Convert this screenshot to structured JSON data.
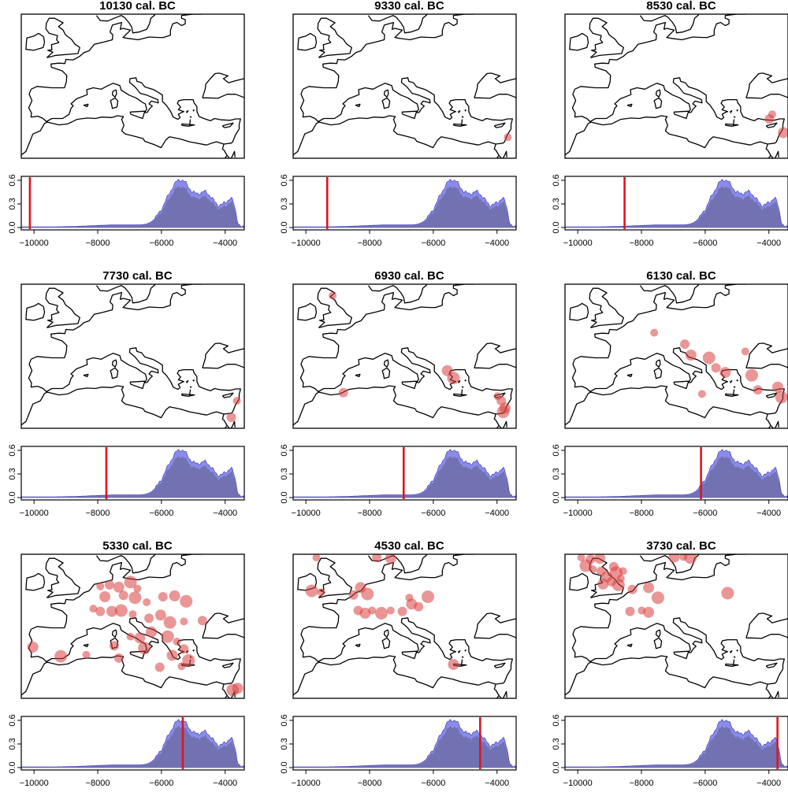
{
  "colors": {
    "density_fill": "#6b6bd9",
    "density_upper": "#5a5ae0",
    "density_core": "#6a6aa0",
    "time_marker": "#e0141e",
    "site_marker": "#d94040",
    "coastline": "#000000"
  },
  "chart_data": [
    {
      "type": "area",
      "title": "10130 cal. BC",
      "time_bc": 10130,
      "xlim": [
        -10400,
        -3400
      ],
      "ylim": [
        0,
        0.6
      ],
      "x_ticks": [
        -10000,
        -8000,
        -6000,
        -4000
      ],
      "y_ticks": [
        0.0,
        0.3,
        0.6
      ],
      "x_tick_labels": [
        "−10000",
        "−8000",
        "−6000",
        "−4000"
      ],
      "y_tick_labels": [
        "0.0",
        "0.3",
        "0.6"
      ],
      "marker_x": -10130,
      "sites": []
    },
    {
      "type": "area",
      "title": "9330 cal. BC",
      "time_bc": 9330,
      "xlim": [
        -10400,
        -3400
      ],
      "ylim": [
        0,
        0.6
      ],
      "x_ticks": [
        -10000,
        -8000,
        -6000,
        -4000
      ],
      "y_ticks": [
        0.0,
        0.3,
        0.6
      ],
      "x_tick_labels": [
        "−10000",
        "−8000",
        "−6000",
        "−4000"
      ],
      "y_tick_labels": [
        "0.0",
        "0.3",
        "0.6"
      ],
      "marker_x": -9330,
      "sites": [
        {
          "lon": 35.2,
          "lat": 32.6
        }
      ]
    },
    {
      "type": "area",
      "title": "8530 cal. BC",
      "time_bc": 8530,
      "xlim": [
        -10400,
        -3400
      ],
      "ylim": [
        0,
        0.6
      ],
      "x_ticks": [
        -10000,
        -8000,
        -6000,
        -4000
      ],
      "y_ticks": [
        0.0,
        0.3,
        0.6
      ],
      "x_tick_labels": [
        "−10000",
        "−8000",
        "−6000",
        "−4000"
      ],
      "y_tick_labels": [
        "0.0",
        "0.3",
        "0.6"
      ],
      "marker_x": -8530,
      "sites": [
        {
          "lon": 33.6,
          "lat": 37.6
        },
        {
          "lon": 33.0,
          "lat": 36.6
        },
        {
          "lon": 36.0,
          "lat": 33.6
        }
      ]
    },
    {
      "type": "area",
      "title": "7730 cal. BC",
      "time_bc": 7730,
      "xlim": [
        -10400,
        -3400
      ],
      "ylim": [
        0,
        0.6
      ],
      "x_ticks": [
        -10000,
        -8000,
        -6000,
        -4000
      ],
      "y_ticks": [
        0.0,
        0.3,
        0.6
      ],
      "x_tick_labels": [
        "−10000",
        "−8000",
        "−6000",
        "−4000"
      ],
      "y_tick_labels": [
        "0.0",
        "0.3",
        "0.6"
      ],
      "marker_x": -7730,
      "sites": [
        {
          "lon": 35.4,
          "lat": 34.0
        },
        {
          "lon": 34.2,
          "lat": 30.4
        }
      ]
    },
    {
      "type": "area",
      "title": "6930 cal. BC",
      "time_bc": 6930,
      "xlim": [
        -10400,
        -3400
      ],
      "ylim": [
        0,
        0.6
      ],
      "x_ticks": [
        -10000,
        -8000,
        -6000,
        -4000
      ],
      "y_ticks": [
        0.0,
        0.3,
        0.6
      ],
      "x_tick_labels": [
        "−10000",
        "−8000",
        "−6000",
        "−4000"
      ],
      "y_tick_labels": [
        "0.0",
        "0.3",
        "0.6"
      ],
      "marker_x": -6930,
      "sites": [
        {
          "lon": -2.5,
          "lat": 57.0
        },
        {
          "lon": -0.2,
          "lat": 35.8
        },
        {
          "lon": 22.2,
          "lat": 40.6
        },
        {
          "lon": 23.5,
          "lat": 39.0
        },
        {
          "lon": 33.0,
          "lat": 35.0
        },
        {
          "lon": 33.8,
          "lat": 34.0
        },
        {
          "lon": 34.6,
          "lat": 32.4
        },
        {
          "lon": 34.2,
          "lat": 31.6
        }
      ]
    },
    {
      "type": "area",
      "title": "6130 cal. BC",
      "time_bc": 6130,
      "xlim": [
        -10400,
        -3400
      ],
      "ylim": [
        0,
        0.6
      ],
      "x_ticks": [
        -10000,
        -8000,
        -6000,
        -4000
      ],
      "y_ticks": [
        0.0,
        0.3,
        0.6
      ],
      "x_tick_labels": [
        "−10000",
        "−8000",
        "−6000",
        "−4000"
      ],
      "y_tick_labels": [
        "0.0",
        "0.3",
        "0.6"
      ],
      "marker_x": -6130,
      "sites": [
        {
          "lon": 8.2,
          "lat": 48.9
        },
        {
          "lon": 14.8,
          "lat": 46.4
        },
        {
          "lon": 16.1,
          "lat": 44.0
        },
        {
          "lon": 20.0,
          "lat": 43.4
        },
        {
          "lon": 27.8,
          "lat": 44.8
        },
        {
          "lon": 21.5,
          "lat": 41.2
        },
        {
          "lon": 23.5,
          "lat": 40.2
        },
        {
          "lon": 29.2,
          "lat": 39.6
        },
        {
          "lon": 18.5,
          "lat": 35.5
        },
        {
          "lon": 30.5,
          "lat": 36.4
        },
        {
          "lon": 34.8,
          "lat": 37.0
        },
        {
          "lon": 35.6,
          "lat": 34.8
        }
      ]
    },
    {
      "type": "area",
      "title": "5330 cal. BC",
      "time_bc": 5330,
      "xlim": [
        -10400,
        -3400
      ],
      "ylim": [
        0,
        0.6
      ],
      "x_ticks": [
        -10000,
        -8000,
        -6000,
        -4000
      ],
      "y_ticks": [
        0.0,
        0.3,
        0.6
      ],
      "x_tick_labels": [
        "−10000",
        "−8000",
        "−6000",
        "−4000"
      ],
      "y_tick_labels": [
        "0.0",
        "0.3",
        "0.6"
      ],
      "marker_x": -5330,
      "sites": [
        {
          "lon": 6.0,
          "lat": 52.5
        },
        {
          "lon": 8.0,
          "lat": 52.8
        },
        {
          "lon": 10.0,
          "lat": 52.3
        },
        {
          "lon": 12.5,
          "lat": 53.4
        },
        {
          "lon": 14.0,
          "lat": 52.0
        },
        {
          "lon": 11.0,
          "lat": 50.5
        },
        {
          "lon": 7.0,
          "lat": 50.2
        },
        {
          "lon": 13.5,
          "lat": 50.0
        },
        {
          "lon": 16.0,
          "lat": 49.0
        },
        {
          "lon": 19.5,
          "lat": 50.2
        },
        {
          "lon": 22.0,
          "lat": 50.4
        },
        {
          "lon": 24.5,
          "lat": 49.2
        },
        {
          "lon": 4.5,
          "lat": 47.6
        },
        {
          "lon": 6.0,
          "lat": 47.0
        },
        {
          "lon": 8.5,
          "lat": 47.0
        },
        {
          "lon": 10.5,
          "lat": 47.2
        },
        {
          "lon": 13.0,
          "lat": 46.4
        },
        {
          "lon": 16.5,
          "lat": 45.5
        },
        {
          "lon": 19.0,
          "lat": 46.2
        },
        {
          "lon": 21.0,
          "lat": 44.6
        },
        {
          "lon": 24.0,
          "lat": 44.8
        },
        {
          "lon": 28.0,
          "lat": 45.0
        },
        {
          "lon": 17.0,
          "lat": 42.5
        },
        {
          "lon": 20.5,
          "lat": 41.5
        },
        {
          "lon": 22.5,
          "lat": 40.4
        },
        {
          "lon": 24.0,
          "lat": 38.8
        },
        {
          "lon": 14.5,
          "lat": 41.2
        },
        {
          "lon": 15.5,
          "lat": 39.0
        },
        {
          "lon": 12.5,
          "lat": 41.5
        },
        {
          "lon": 9.0,
          "lat": 39.5
        },
        {
          "lon": -8.5,
          "lat": 39.2
        },
        {
          "lon": -2.5,
          "lat": 37.2
        },
        {
          "lon": 3.0,
          "lat": 37.5
        },
        {
          "lon": 10.0,
          "lat": 36.8
        },
        {
          "lon": 21.5,
          "lat": 37.4
        },
        {
          "lon": 25.0,
          "lat": 36.3
        },
        {
          "lon": 23.5,
          "lat": 35.0
        },
        {
          "lon": 18.8,
          "lat": 34.8
        },
        {
          "lon": 35.6,
          "lat": 30.2
        },
        {
          "lon": 34.5,
          "lat": 29.8
        }
      ]
    },
    {
      "type": "area",
      "title": "4530 cal. BC",
      "time_bc": 4530,
      "xlim": [
        -10400,
        -3400
      ],
      "ylim": [
        0,
        0.6
      ],
      "x_ticks": [
        -10000,
        -8000,
        -6000,
        -4000
      ],
      "y_ticks": [
        0.0,
        0.3,
        0.6
      ],
      "x_tick_labels": [
        "−10000",
        "−8000",
        "−6000",
        "−4000"
      ],
      "y_tick_labels": [
        "0.0",
        "0.3",
        "0.6"
      ],
      "marker_x": -4530,
      "sites": [
        {
          "lon": -6.0,
          "lat": 58.8
        },
        {
          "lon": 7.0,
          "lat": 58.8
        },
        {
          "lon": 10.0,
          "lat": 58.6
        },
        {
          "lon": -7.0,
          "lat": 51.5
        },
        {
          "lon": -5.0,
          "lat": 51.2
        },
        {
          "lon": 2.0,
          "lat": 50.6
        },
        {
          "lon": 3.5,
          "lat": 52.2
        },
        {
          "lon": 5.0,
          "lat": 50.8
        },
        {
          "lon": 6.0,
          "lat": 47.2
        },
        {
          "lon": 3.0,
          "lat": 47.2
        },
        {
          "lon": 4.5,
          "lat": 46.6
        },
        {
          "lon": 8.0,
          "lat": 46.6
        },
        {
          "lon": 10.0,
          "lat": 47.2
        },
        {
          "lon": 12.5,
          "lat": 47.0
        },
        {
          "lon": 14.5,
          "lat": 48.6
        },
        {
          "lon": 18.0,
          "lat": 50.2
        },
        {
          "lon": 14.0,
          "lat": 50.0
        },
        {
          "lon": 16.0,
          "lat": 48.0
        },
        {
          "lon": 23.5,
          "lat": 35.4
        }
      ]
    },
    {
      "type": "area",
      "title": "3730 cal. BC",
      "time_bc": 3730,
      "xlim": [
        -10400,
        -3400
      ],
      "ylim": [
        0,
        0.6
      ],
      "x_ticks": [
        -10000,
        -8000,
        -6000,
        -4000
      ],
      "y_ticks": [
        0.0,
        0.3,
        0.6
      ],
      "x_tick_labels": [
        "−10000",
        "−8000",
        "−6000",
        "−4000"
      ],
      "y_tick_labels": [
        "0.0",
        "0.3",
        "0.6"
      ],
      "marker_x": -3730,
      "sites": [
        {
          "lon": -7.5,
          "lat": 58.8
        },
        {
          "lon": -5.5,
          "lat": 58.4
        },
        {
          "lon": -3.5,
          "lat": 58.6
        },
        {
          "lon": -6.5,
          "lat": 57.0
        },
        {
          "lon": -5.0,
          "lat": 56.2
        },
        {
          "lon": -3.2,
          "lat": 55.8
        },
        {
          "lon": -2.0,
          "lat": 54.6
        },
        {
          "lon": 0.0,
          "lat": 55.5
        },
        {
          "lon": 1.0,
          "lat": 54.2
        },
        {
          "lon": -1.0,
          "lat": 53.5
        },
        {
          "lon": -2.8,
          "lat": 53.0
        },
        {
          "lon": 0.5,
          "lat": 52.8
        },
        {
          "lon": 1.5,
          "lat": 55.8
        },
        {
          "lon": -0.5,
          "lat": 56.8
        },
        {
          "lon": 12.5,
          "lat": 58.9
        },
        {
          "lon": 16.0,
          "lat": 58.8
        },
        {
          "lon": 14.5,
          "lat": 58.9
        },
        {
          "lon": 3.5,
          "lat": 51.8
        },
        {
          "lon": 7.0,
          "lat": 52.2
        },
        {
          "lon": 9.0,
          "lat": 50.0
        },
        {
          "lon": 5.5,
          "lat": 47.2
        },
        {
          "lon": 3.0,
          "lat": 47.0
        },
        {
          "lon": 7.0,
          "lat": 46.8
        },
        {
          "lon": 24.0,
          "lat": 51.0
        }
      ]
    }
  ]
}
